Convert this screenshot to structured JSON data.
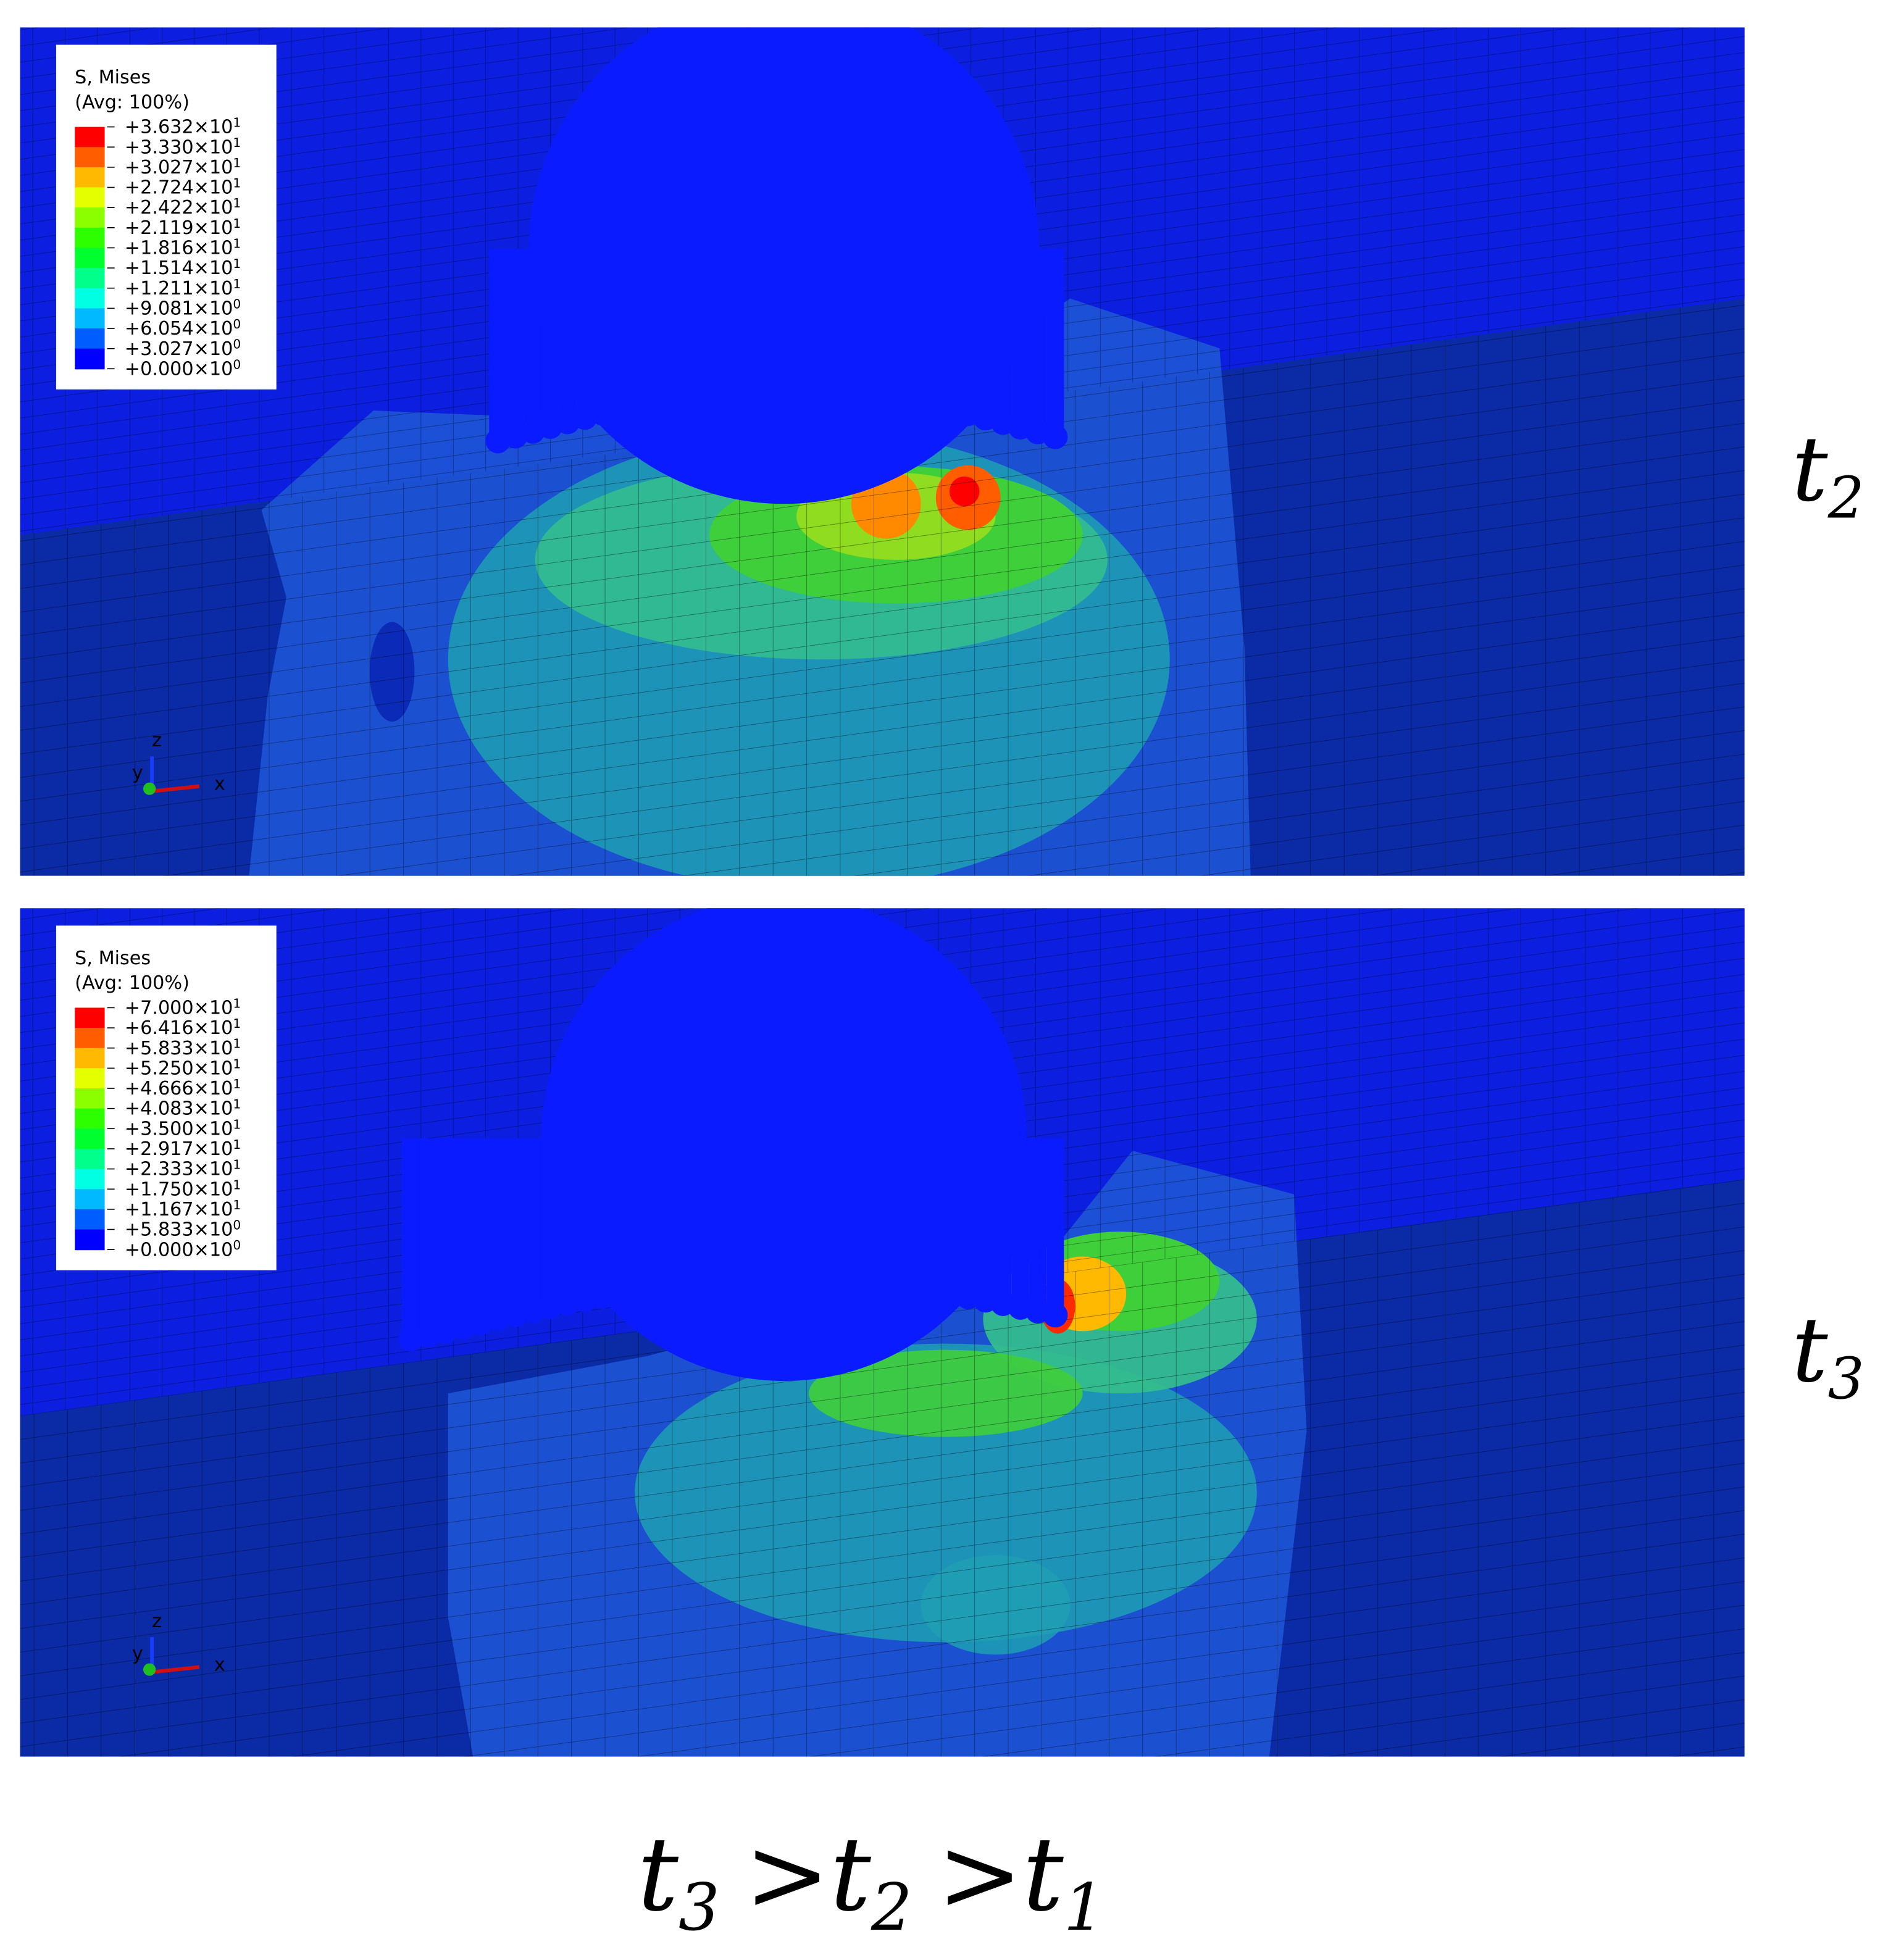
{
  "panels": [
    {
      "legend": {
        "title": "S, Mises",
        "subtitle": "(Avg: 100%)",
        "entries": [
          {
            "mantissa": "+3.632×10",
            "exponent": "1"
          },
          {
            "mantissa": "+3.330×10",
            "exponent": "1"
          },
          {
            "mantissa": "+3.027×10",
            "exponent": "1"
          },
          {
            "mantissa": "+2.724×10",
            "exponent": "1"
          },
          {
            "mantissa": "+2.422×10",
            "exponent": "1"
          },
          {
            "mantissa": "+2.119×10",
            "exponent": "1"
          },
          {
            "mantissa": "+1.816×10",
            "exponent": "1"
          },
          {
            "mantissa": "+1.514×10",
            "exponent": "1"
          },
          {
            "mantissa": "+1.211×10",
            "exponent": "1"
          },
          {
            "mantissa": "+9.081×10",
            "exponent": "0"
          },
          {
            "mantissa": "+6.054×10",
            "exponent": "0"
          },
          {
            "mantissa": "+3.027×10",
            "exponent": "0"
          },
          {
            "mantissa": "+0.000×10",
            "exponent": "0"
          }
        ],
        "colors": [
          "#ff0000",
          "#ff5d00",
          "#ffb900",
          "#e3ff00",
          "#8bff00",
          "#2eff00",
          "#00ff2e",
          "#00ff8b",
          "#00ffe3",
          "#00b9ff",
          "#005dff",
          "#0000ff"
        ]
      },
      "triad": {
        "z": "z",
        "x": "x",
        "y": "y"
      },
      "time_label": {
        "base": "t",
        "subscript": "2"
      }
    },
    {
      "legend": {
        "title": "S, Mises",
        "subtitle": "(Avg: 100%)",
        "entries": [
          {
            "mantissa": "+7.000×10",
            "exponent": "1"
          },
          {
            "mantissa": "+6.416×10",
            "exponent": "1"
          },
          {
            "mantissa": "+5.833×10",
            "exponent": "1"
          },
          {
            "mantissa": "+5.250×10",
            "exponent": "1"
          },
          {
            "mantissa": "+4.666×10",
            "exponent": "1"
          },
          {
            "mantissa": "+4.083×10",
            "exponent": "1"
          },
          {
            "mantissa": "+3.500×10",
            "exponent": "1"
          },
          {
            "mantissa": "+2.917×10",
            "exponent": "1"
          },
          {
            "mantissa": "+2.333×10",
            "exponent": "1"
          },
          {
            "mantissa": "+1.750×10",
            "exponent": "1"
          },
          {
            "mantissa": "+1.167×10",
            "exponent": "1"
          },
          {
            "mantissa": "+5.833×10",
            "exponent": "0"
          },
          {
            "mantissa": "+0.000×10",
            "exponent": "0"
          }
        ],
        "colors": [
          "#ff0000",
          "#ff5d00",
          "#ffb900",
          "#e3ff00",
          "#8bff00",
          "#2eff00",
          "#00ff2e",
          "#00ff8b",
          "#00ffe3",
          "#00b9ff",
          "#005dff",
          "#0000ff"
        ]
      },
      "triad": {
        "z": "z",
        "x": "x",
        "y": "y"
      },
      "time_label": {
        "base": "t",
        "subscript": "3"
      }
    }
  ],
  "caption": {
    "terms": [
      {
        "base": "t",
        "subscript": "3"
      },
      {
        "base": "t",
        "subscript": "2"
      },
      {
        "base": "t",
        "subscript": "1"
      }
    ],
    "operators": [
      ">",
      ">"
    ]
  }
}
